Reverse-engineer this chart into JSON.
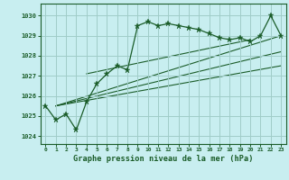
{
  "title": "Graphe pression niveau de la mer (hPa)",
  "bg_color": "#c8eef0",
  "grid_color": "#a0ccc8",
  "line_color": "#1a5c28",
  "x_labels": [
    "0",
    "1",
    "2",
    "3",
    "4",
    "5",
    "6",
    "7",
    "8",
    "9",
    "10",
    "11",
    "12",
    "13",
    "14",
    "15",
    "16",
    "17",
    "18",
    "19",
    "20",
    "21",
    "22",
    "23"
  ],
  "y_values": [
    1025.5,
    1024.8,
    1025.1,
    1024.3,
    1025.7,
    1026.6,
    1027.1,
    1027.5,
    1027.3,
    1029.5,
    1029.7,
    1029.5,
    1029.6,
    1029.5,
    1029.4,
    1029.3,
    1029.1,
    1028.9,
    1028.8,
    1028.9,
    1028.7,
    1029.0,
    1030.0,
    1029.0
  ],
  "trend_lines": [
    {
      "x": [
        1,
        23
      ],
      "y": [
        1025.5,
        1029.0
      ]
    },
    {
      "x": [
        1,
        23
      ],
      "y": [
        1025.5,
        1027.5
      ]
    },
    {
      "x": [
        1,
        23
      ],
      "y": [
        1025.5,
        1028.2
      ]
    },
    {
      "x": [
        4,
        20
      ],
      "y": [
        1027.1,
        1028.8
      ]
    }
  ],
  "yticks": [
    1024,
    1025,
    1026,
    1027,
    1028,
    1029,
    1030
  ],
  "ylim": [
    1023.6,
    1030.6
  ],
  "xlim": [
    -0.5,
    23.5
  ]
}
